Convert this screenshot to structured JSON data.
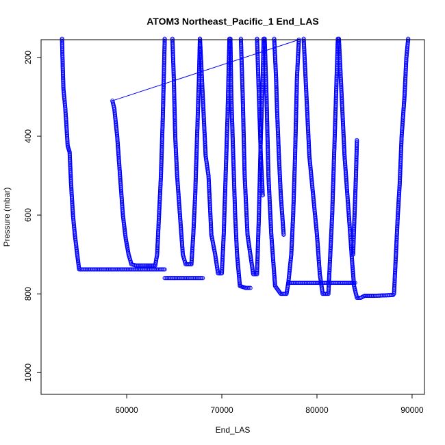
{
  "chart_data": {
    "type": "scatter",
    "title": "ATOM3 Northeast_Pacific_1 End_LAS",
    "xlabel": "End_LAS",
    "ylabel": "Pressure (mbar)",
    "xlim": [
      51000,
      91300
    ],
    "ylim": [
      1055,
      155
    ],
    "y_reversed": true,
    "x_ticks": [
      60000,
      70000,
      80000,
      90000
    ],
    "y_ticks": [
      200,
      400,
      600,
      800,
      1000
    ],
    "grid": false,
    "legend": "none",
    "point_color": "#0000ff",
    "marker": "open-circle",
    "series": [
      {
        "points": [
          [
            53200,
            150
          ],
          [
            53250,
            200
          ],
          [
            53350,
            280
          ],
          [
            53550,
            330
          ],
          [
            53800,
            425
          ],
          [
            54000,
            440
          ],
          [
            54150,
            520
          ],
          [
            54350,
            600
          ],
          [
            54550,
            650
          ],
          [
            54800,
            700
          ],
          [
            55000,
            738
          ],
          [
            58500,
            738
          ],
          [
            62000,
            738
          ],
          [
            64000,
            738
          ]
        ]
      },
      {
        "points": [
          [
            58500,
            310
          ],
          [
            58700,
            330
          ],
          [
            59000,
            400
          ],
          [
            59300,
            500
          ],
          [
            59600,
            600
          ],
          [
            59900,
            660
          ],
          [
            60200,
            700
          ],
          [
            60500,
            725
          ],
          [
            61000,
            728
          ],
          [
            62000,
            728
          ],
          [
            63000,
            728
          ],
          [
            63200,
            700
          ],
          [
            63400,
            600
          ],
          [
            63600,
            500
          ],
          [
            63800,
            350
          ],
          [
            64000,
            150
          ]
        ]
      },
      {
        "points": [
          [
            64000,
            760
          ],
          [
            66000,
            760
          ],
          [
            68000,
            760
          ]
        ]
      },
      {
        "points": [
          [
            64800,
            150
          ],
          [
            64950,
            250
          ],
          [
            65100,
            400
          ],
          [
            65300,
            500
          ],
          [
            65600,
            600
          ],
          [
            65900,
            700
          ],
          [
            66200,
            725
          ],
          [
            66800,
            725
          ],
          [
            67000,
            650
          ],
          [
            67200,
            550
          ],
          [
            67400,
            400
          ],
          [
            67600,
            250
          ],
          [
            67700,
            150
          ]
        ]
      },
      {
        "points": [
          [
            67700,
            150
          ],
          [
            67900,
            250
          ],
          [
            68100,
            350
          ],
          [
            68300,
            450
          ],
          [
            68600,
            500
          ],
          [
            68900,
            650
          ],
          [
            69300,
            700
          ],
          [
            69600,
            748
          ],
          [
            70000,
            748
          ],
          [
            70200,
            650
          ],
          [
            70400,
            500
          ],
          [
            70600,
            350
          ],
          [
            70800,
            150
          ]
        ]
      },
      {
        "points": [
          [
            70900,
            150
          ],
          [
            71000,
            300
          ],
          [
            71200,
            450
          ],
          [
            71400,
            600
          ],
          [
            71600,
            700
          ],
          [
            71900,
            780
          ],
          [
            72500,
            785
          ],
          [
            73000,
            785
          ]
        ]
      },
      {
        "points": [
          [
            72000,
            150
          ],
          [
            72200,
            300
          ],
          [
            72400,
            500
          ],
          [
            72700,
            650
          ],
          [
            73000,
            700
          ],
          [
            73300,
            750
          ],
          [
            73700,
            750
          ],
          [
            73900,
            600
          ],
          [
            74100,
            400
          ],
          [
            74300,
            250
          ],
          [
            74400,
            150
          ]
        ]
      },
      {
        "points": [
          [
            74500,
            150
          ],
          [
            74700,
            300
          ],
          [
            74900,
            500
          ],
          [
            75200,
            650
          ],
          [
            75600,
            780
          ],
          [
            76200,
            800
          ],
          [
            76800,
            800
          ],
          [
            77000,
            770
          ],
          [
            77300,
            700
          ],
          [
            77500,
            600
          ],
          [
            77700,
            450
          ],
          [
            77900,
            250
          ],
          [
            78100,
            155
          ]
        ]
      },
      {
        "points": [
          [
            77000,
            772
          ],
          [
            80000,
            772
          ],
          [
            83000,
            772
          ],
          [
            84000,
            772
          ]
        ]
      },
      {
        "points": [
          [
            78600,
            150
          ],
          [
            78900,
            300
          ],
          [
            79200,
            450
          ],
          [
            79600,
            550
          ],
          [
            80000,
            650
          ],
          [
            80300,
            750
          ],
          [
            80600,
            800
          ],
          [
            81200,
            800
          ],
          [
            81400,
            700
          ],
          [
            81600,
            600
          ],
          [
            81800,
            450
          ],
          [
            82000,
            300
          ],
          [
            82200,
            150
          ]
        ]
      },
      {
        "points": [
          [
            82300,
            150
          ],
          [
            82600,
            300
          ],
          [
            82900,
            450
          ],
          [
            83200,
            550
          ],
          [
            83500,
            650
          ],
          [
            83700,
            720
          ],
          [
            83900,
            780
          ],
          [
            84200,
            810
          ],
          [
            84600,
            810
          ],
          [
            85000,
            805
          ],
          [
            86000,
            805
          ],
          [
            88000,
            803
          ]
        ]
      },
      {
        "points": [
          [
            84200,
            410
          ],
          [
            84100,
            500
          ],
          [
            83950,
            600
          ],
          [
            83800,
            700
          ]
        ]
      },
      {
        "points": [
          [
            88100,
            800
          ],
          [
            88300,
            700
          ],
          [
            88500,
            600
          ],
          [
            88700,
            520
          ],
          [
            88900,
            400
          ],
          [
            89200,
            300
          ],
          [
            89400,
            200
          ],
          [
            89600,
            150
          ]
        ]
      },
      {
        "points": [
          [
            75500,
            150
          ],
          [
            75700,
            250
          ],
          [
            75800,
            330
          ],
          [
            76000,
            450
          ],
          [
            76200,
            550
          ],
          [
            76500,
            650
          ]
        ]
      },
      {
        "points": [
          [
            73700,
            150
          ],
          [
            73900,
            300
          ],
          [
            74100,
            450
          ],
          [
            74300,
            550
          ]
        ]
      }
    ],
    "connector": [
      [
        58500,
        310
      ],
      [
        78100,
        155
      ]
    ]
  }
}
